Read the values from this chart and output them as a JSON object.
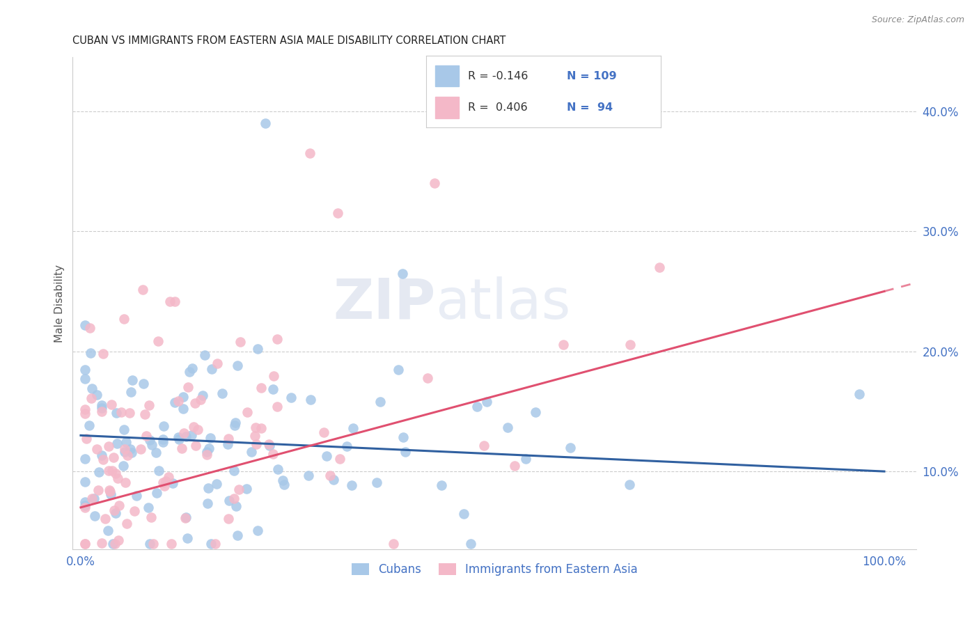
{
  "title": "CUBAN VS IMMIGRANTS FROM EASTERN ASIA MALE DISABILITY CORRELATION CHART",
  "source": "Source: ZipAtlas.com",
  "ylabel": "Male Disability",
  "ylim": [
    0.035,
    0.445
  ],
  "xlim": [
    -0.01,
    1.04
  ],
  "background_color": "#ffffff",
  "grid_color": "#cccccc",
  "blue_color": "#a8c8e8",
  "pink_color": "#f4b8c8",
  "blue_line_color": "#3060a0",
  "pink_line_color": "#e05070",
  "axis_label_color": "#4472c4",
  "title_color": "#222222",
  "source_color": "#888888",
  "blue_r": -0.146,
  "blue_n": 109,
  "pink_r": 0.406,
  "pink_n": 94,
  "blue_line_x0": 0.0,
  "blue_line_y0": 0.13,
  "blue_line_x1": 1.0,
  "blue_line_y1": 0.1,
  "pink_line_x0": 0.0,
  "pink_line_y0": 0.07,
  "pink_line_x1": 1.0,
  "pink_line_y1": 0.25
}
